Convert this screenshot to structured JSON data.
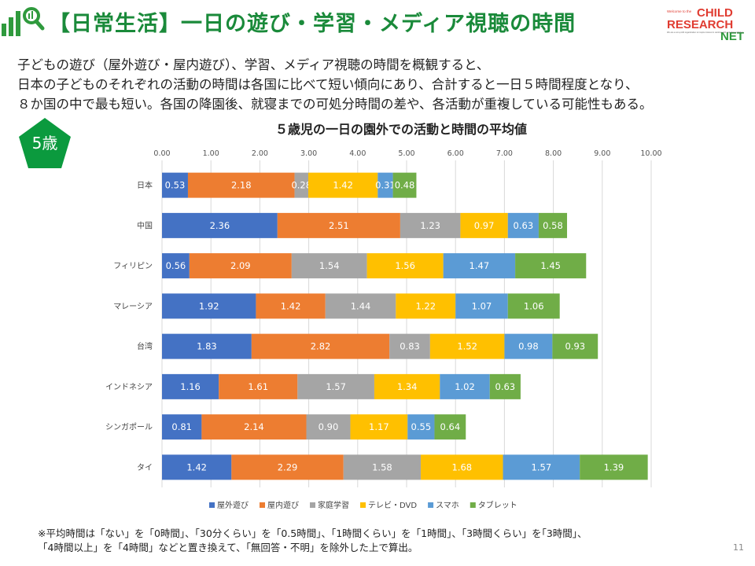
{
  "header": {
    "title": "【日常生活】一日の遊び・学習・メディア視聴の時間",
    "brand_tagline": "Welcome to the",
    "brand_line1": "CHILD",
    "brand_line2": "RESEARCH",
    "brand_line3": "NET",
    "brand_small": "We are a non-profit organization to inspire interest in working with and about children"
  },
  "intro": {
    "line1": "子どもの遊び（屋外遊び・屋内遊び）、学習、メディア視聴の時間を概観すると、",
    "line2": "日本の子どものそれぞれの活動の時間は各国に比べて短い傾向にあり、合計すると一日５時間程度となり、",
    "line3": "８か国の中で最も短い。各国の降園後、就寝までの可処分時間の差や、各活動が重複している可能性もある。"
  },
  "age_badge": "5歳",
  "chart_data": {
    "type": "bar",
    "orientation": "horizontal",
    "stacked": true,
    "title": "５歳児の一日の園外での活動と時間の平均値",
    "categories": [
      "日本",
      "中国",
      "フィリピン",
      "マレーシア",
      "台湾",
      "インドネシア",
      "シンガポール",
      "タイ"
    ],
    "xlim": [
      0,
      10
    ],
    "xticks": [
      "0.00",
      "1.00",
      "2.00",
      "3.00",
      "4.00",
      "5.00",
      "6.00",
      "7.00",
      "8.00",
      "9.00",
      "10.00"
    ],
    "xaxis_position": "top",
    "grid": true,
    "legend_position": "bottom",
    "series": [
      {
        "name": "屋外遊び",
        "color": "#4472c4",
        "values": [
          0.53,
          2.36,
          0.56,
          1.92,
          1.83,
          1.16,
          0.81,
          1.42
        ]
      },
      {
        "name": "屋内遊び",
        "color": "#ed7d31",
        "values": [
          2.18,
          2.51,
          2.09,
          1.42,
          2.82,
          1.61,
          2.14,
          2.29
        ]
      },
      {
        "name": "家庭学習",
        "color": "#a5a5a5",
        "values": [
          0.28,
          1.23,
          1.54,
          1.44,
          0.83,
          1.57,
          0.9,
          1.58
        ]
      },
      {
        "name": "テレビ・DVD",
        "color": "#ffc000",
        "values": [
          1.42,
          0.97,
          1.56,
          1.22,
          1.52,
          1.34,
          1.17,
          1.68
        ]
      },
      {
        "name": "スマホ",
        "color": "#5b9bd5",
        "values": [
          0.31,
          0.63,
          1.47,
          1.07,
          0.98,
          1.02,
          0.55,
          1.57
        ]
      },
      {
        "name": "タブレット",
        "color": "#70ad47",
        "values": [
          0.48,
          0.58,
          1.45,
          1.06,
          0.93,
          0.63,
          0.64,
          1.39
        ]
      }
    ]
  },
  "footnote": {
    "line1": "※平均時間は「ない」を「0時間」、「30分くらい」を「0.5時間」、「1時間くらい」を「1時間」、「3時間くらい」を｢3時間」、",
    "line2": "「4時間以上」を「4時間」などと置き換えて、「無回答・不明」を除外した上で算出。"
  },
  "page_number": "11",
  "colors": {
    "title_green": "#1a8a3a",
    "brand_red": "#e03c31",
    "brand_green": "#2f9a3d"
  }
}
